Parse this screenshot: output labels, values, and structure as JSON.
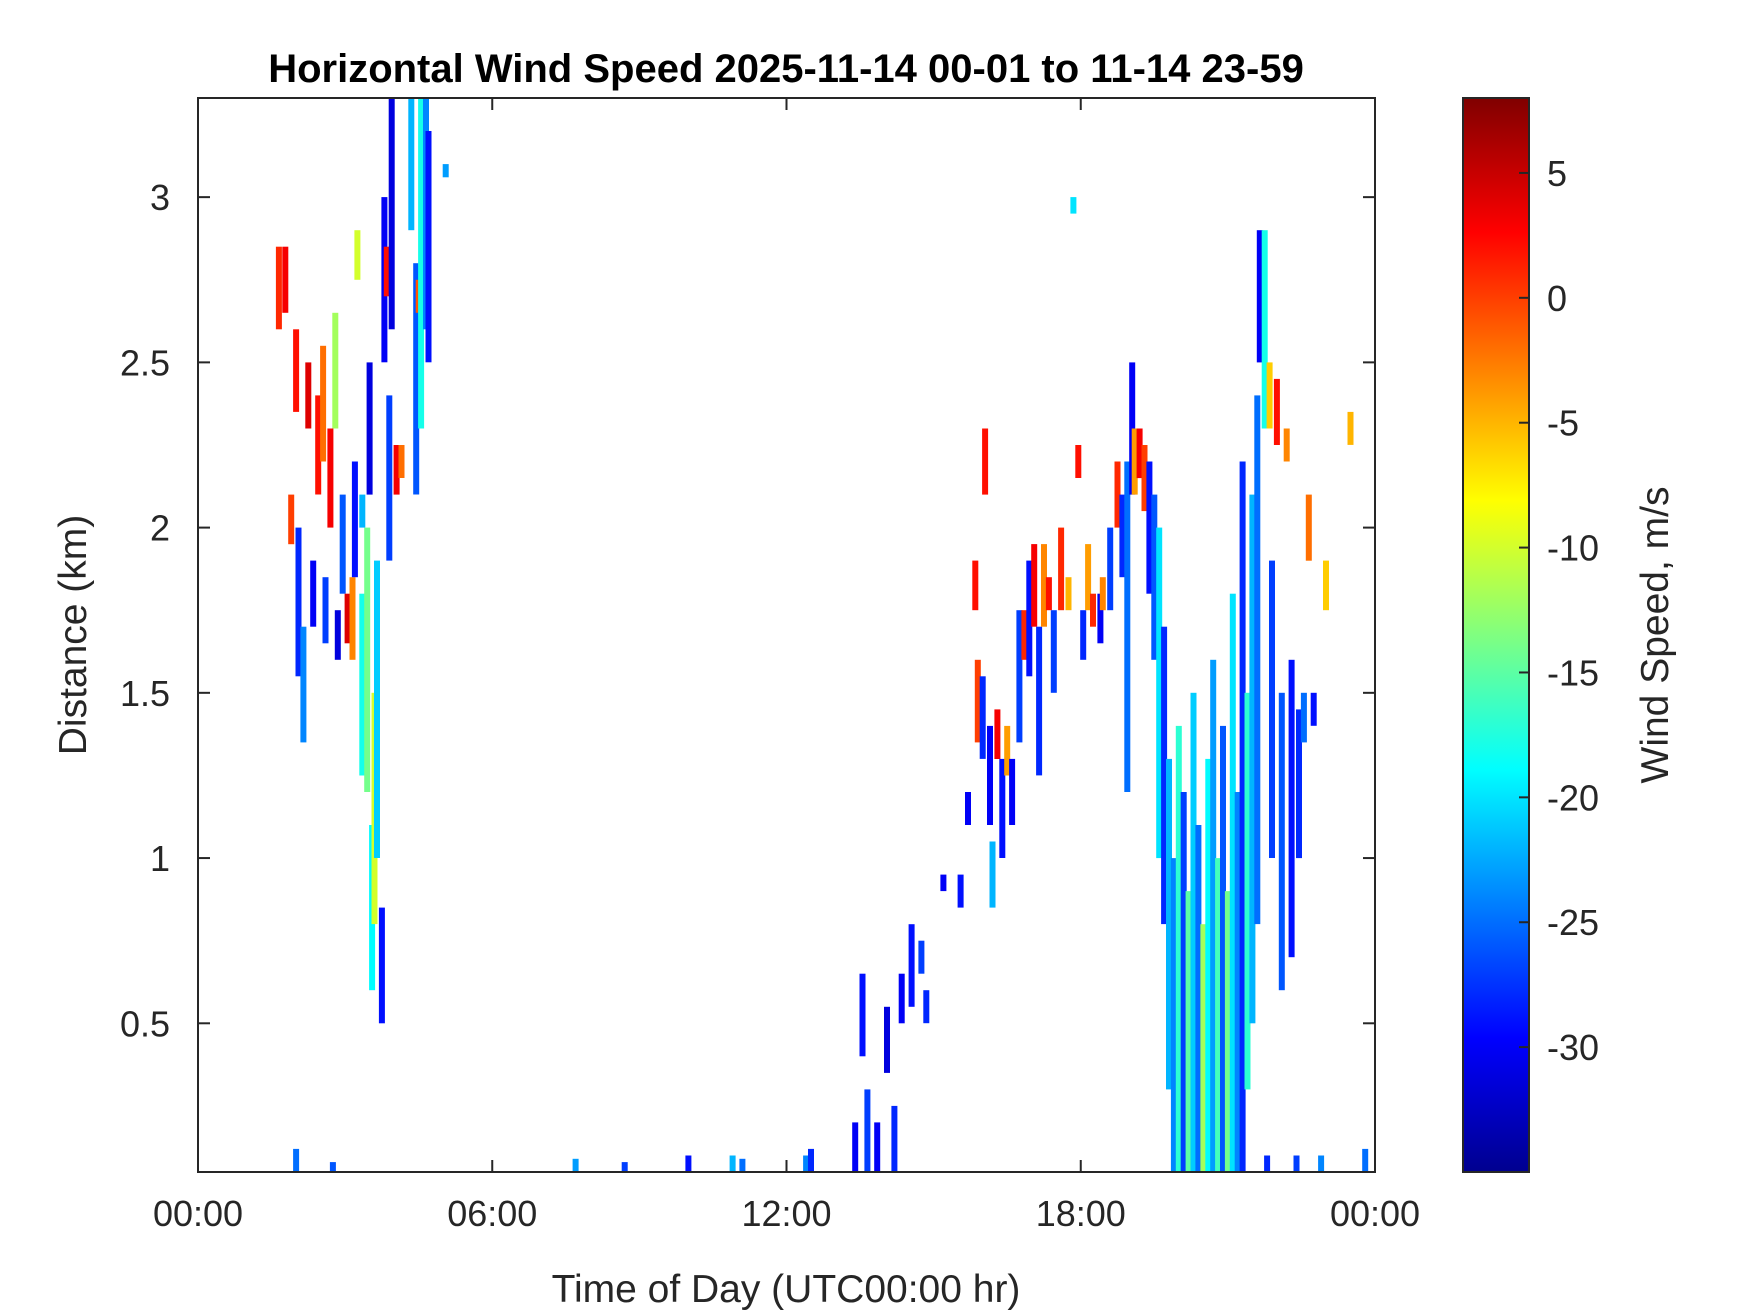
{
  "chart_data": {
    "type": "heatmap",
    "title": "Horizontal Wind Speed 2025-11-14 00-01 to 11-14 23-59",
    "xlabel": "Time of Day (UTC00:00 hr)",
    "ylabel": "Distance (km)",
    "colorbar_label": "Wind Speed, m/s",
    "colormap": "jet",
    "x_unit": "hours",
    "xlim": [
      0,
      24
    ],
    "ylim": [
      0.05,
      3.3
    ],
    "clim": [
      -35,
      8
    ],
    "x_ticks": [
      {
        "value": 0,
        "label": "00:00"
      },
      {
        "value": 6,
        "label": "06:00"
      },
      {
        "value": 12,
        "label": "12:00"
      },
      {
        "value": 18,
        "label": "18:00"
      },
      {
        "value": 24,
        "label": "00:00"
      }
    ],
    "y_ticks": [
      {
        "value": 0.5,
        "label": "0.5"
      },
      {
        "value": 1,
        "label": "1"
      },
      {
        "value": 1.5,
        "label": "1.5"
      },
      {
        "value": 2,
        "label": "2"
      },
      {
        "value": 2.5,
        "label": "2.5"
      },
      {
        "value": 3,
        "label": "3"
      }
    ],
    "colorbar_ticks": [
      {
        "value": 5,
        "label": "5"
      },
      {
        "value": 0,
        "label": "0"
      },
      {
        "value": -5,
        "label": "-5"
      },
      {
        "value": -10,
        "label": "-10"
      },
      {
        "value": -15,
        "label": "-15"
      },
      {
        "value": -20,
        "label": "-20"
      },
      {
        "value": -25,
        "label": "-25"
      },
      {
        "value": -30,
        "label": "-30"
      }
    ],
    "segments": [
      {
        "t": 1.65,
        "h0": 2.6,
        "h1": 2.85,
        "v": 1
      },
      {
        "t": 1.78,
        "h0": 2.65,
        "h1": 2.85,
        "v": 3
      },
      {
        "t": 1.9,
        "h0": 1.95,
        "h1": 2.1,
        "v": 0
      },
      {
        "t": 2.0,
        "h0": 2.35,
        "h1": 2.6,
        "v": 2
      },
      {
        "t": 2.05,
        "h0": 1.55,
        "h1": 2.0,
        "v": -28
      },
      {
        "t": 2.15,
        "h0": 1.35,
        "h1": 1.7,
        "v": -24
      },
      {
        "t": 2.25,
        "h0": 2.3,
        "h1": 2.5,
        "v": 4
      },
      {
        "t": 2.35,
        "h0": 1.7,
        "h1": 1.9,
        "v": -30
      },
      {
        "t": 2.45,
        "h0": 2.1,
        "h1": 2.4,
        "v": 2
      },
      {
        "t": 2.55,
        "h0": 2.2,
        "h1": 2.55,
        "v": -2
      },
      {
        "t": 2.6,
        "h0": 1.65,
        "h1": 1.85,
        "v": -27
      },
      {
        "t": 2.7,
        "h0": 2.0,
        "h1": 2.3,
        "v": 3
      },
      {
        "t": 2.8,
        "h0": 2.3,
        "h1": 2.65,
        "v": -12
      },
      {
        "t": 2.85,
        "h0": 1.6,
        "h1": 1.75,
        "v": -31
      },
      {
        "t": 2.95,
        "h0": 1.8,
        "h1": 2.1,
        "v": -26
      },
      {
        "t": 3.05,
        "h0": 1.65,
        "h1": 1.8,
        "v": 4
      },
      {
        "t": 3.15,
        "h0": 1.6,
        "h1": 1.85,
        "v": -3
      },
      {
        "t": 3.2,
        "h0": 1.85,
        "h1": 2.2,
        "v": -29
      },
      {
        "t": 3.25,
        "h0": 2.75,
        "h1": 2.9,
        "v": -10
      },
      {
        "t": 3.35,
        "h0": 2.0,
        "h1": 2.1,
        "v": -22
      },
      {
        "t": 3.35,
        "h0": 1.25,
        "h1": 1.8,
        "v": -18
      },
      {
        "t": 3.45,
        "h0": 1.2,
        "h1": 2.0,
        "v": -14
      },
      {
        "t": 3.5,
        "h0": 2.1,
        "h1": 2.5,
        "v": -31
      },
      {
        "t": 3.55,
        "h0": 0.6,
        "h1": 1.1,
        "v": -19
      },
      {
        "t": 3.6,
        "h0": 0.8,
        "h1": 1.5,
        "v": -10
      },
      {
        "t": 3.65,
        "h0": 1.0,
        "h1": 1.9,
        "v": -21
      },
      {
        "t": 3.75,
        "h0": 0.5,
        "h1": 0.85,
        "v": -29
      },
      {
        "t": 3.8,
        "h0": 2.5,
        "h1": 3.0,
        "v": -30
      },
      {
        "t": 3.85,
        "h0": 2.7,
        "h1": 2.85,
        "v": 2
      },
      {
        "t": 3.9,
        "h0": 1.9,
        "h1": 2.4,
        "v": -27
      },
      {
        "t": 3.95,
        "h0": 2.6,
        "h1": 3.3,
        "v": -31
      },
      {
        "t": 4.05,
        "h0": 2.1,
        "h1": 2.25,
        "v": 3
      },
      {
        "t": 4.15,
        "h0": 2.15,
        "h1": 2.25,
        "v": -2
      },
      {
        "t": 4.35,
        "h0": 2.9,
        "h1": 3.3,
        "v": -22
      },
      {
        "t": 4.45,
        "h0": 2.1,
        "h1": 2.8,
        "v": -26
      },
      {
        "t": 4.5,
        "h0": 2.65,
        "h1": 2.75,
        "v": -1
      },
      {
        "t": 4.55,
        "h0": 2.3,
        "h1": 3.3,
        "v": -18
      },
      {
        "t": 4.65,
        "h0": 2.6,
        "h1": 3.3,
        "v": -24
      },
      {
        "t": 4.7,
        "h0": 2.5,
        "h1": 3.2,
        "v": -29
      },
      {
        "t": 5.05,
        "h0": 3.06,
        "h1": 3.1,
        "v": -23
      },
      {
        "t": 2.0,
        "h0": 0.05,
        "h1": 0.12,
        "v": -25
      },
      {
        "t": 2.75,
        "h0": 0.05,
        "h1": 0.08,
        "v": -26
      },
      {
        "t": 7.7,
        "h0": 0.05,
        "h1": 0.09,
        "v": -23
      },
      {
        "t": 8.7,
        "h0": 0.05,
        "h1": 0.08,
        "v": -27
      },
      {
        "t": 10.0,
        "h0": 0.05,
        "h1": 0.1,
        "v": -29
      },
      {
        "t": 10.9,
        "h0": 0.05,
        "h1": 0.1,
        "v": -22
      },
      {
        "t": 11.1,
        "h0": 0.05,
        "h1": 0.09,
        "v": -25
      },
      {
        "t": 12.4,
        "h0": 0.05,
        "h1": 0.1,
        "v": -24
      },
      {
        "t": 12.5,
        "h0": 0.05,
        "h1": 0.12,
        "v": -28
      },
      {
        "t": 13.4,
        "h0": 0.05,
        "h1": 0.2,
        "v": -30
      },
      {
        "t": 13.55,
        "h0": 0.4,
        "h1": 0.65,
        "v": -29
      },
      {
        "t": 13.65,
        "h0": 0.05,
        "h1": 0.3,
        "v": -27
      },
      {
        "t": 13.85,
        "h0": 0.05,
        "h1": 0.2,
        "v": -30
      },
      {
        "t": 14.05,
        "h0": 0.35,
        "h1": 0.55,
        "v": -31
      },
      {
        "t": 14.2,
        "h0": 0.05,
        "h1": 0.25,
        "v": -28
      },
      {
        "t": 14.35,
        "h0": 0.5,
        "h1": 0.65,
        "v": -30
      },
      {
        "t": 14.55,
        "h0": 0.55,
        "h1": 0.8,
        "v": -29
      },
      {
        "t": 14.75,
        "h0": 0.65,
        "h1": 0.75,
        "v": -27
      },
      {
        "t": 14.85,
        "h0": 0.5,
        "h1": 0.6,
        "v": -28
      },
      {
        "t": 15.2,
        "h0": 0.9,
        "h1": 0.95,
        "v": -30
      },
      {
        "t": 15.55,
        "h0": 0.85,
        "h1": 0.95,
        "v": -29
      },
      {
        "t": 15.7,
        "h0": 1.1,
        "h1": 1.2,
        "v": -30
      },
      {
        "t": 15.85,
        "h0": 1.75,
        "h1": 1.9,
        "v": 2
      },
      {
        "t": 15.9,
        "h0": 1.35,
        "h1": 1.6,
        "v": 0
      },
      {
        "t": 16.0,
        "h0": 1.3,
        "h1": 1.55,
        "v": -28
      },
      {
        "t": 16.05,
        "h0": 2.1,
        "h1": 2.3,
        "v": 2
      },
      {
        "t": 16.15,
        "h0": 1.1,
        "h1": 1.4,
        "v": -30
      },
      {
        "t": 16.2,
        "h0": 0.85,
        "h1": 1.05,
        "v": -22
      },
      {
        "t": 16.3,
        "h0": 1.3,
        "h1": 1.45,
        "v": 3
      },
      {
        "t": 16.4,
        "h0": 1.0,
        "h1": 1.3,
        "v": -29
      },
      {
        "t": 16.5,
        "h0": 1.25,
        "h1": 1.4,
        "v": -4
      },
      {
        "t": 16.6,
        "h0": 1.1,
        "h1": 1.3,
        "v": -30
      },
      {
        "t": 16.75,
        "h0": 1.35,
        "h1": 1.75,
        "v": -27
      },
      {
        "t": 16.85,
        "h0": 1.6,
        "h1": 1.75,
        "v": 1
      },
      {
        "t": 16.95,
        "h0": 1.55,
        "h1": 1.9,
        "v": -29
      },
      {
        "t": 17.05,
        "h0": 1.7,
        "h1": 1.95,
        "v": 3
      },
      {
        "t": 17.15,
        "h0": 1.25,
        "h1": 1.7,
        "v": -28
      },
      {
        "t": 17.25,
        "h0": 1.7,
        "h1": 1.95,
        "v": -3
      },
      {
        "t": 17.35,
        "h0": 1.75,
        "h1": 1.85,
        "v": 2
      },
      {
        "t": 17.45,
        "h0": 1.5,
        "h1": 1.75,
        "v": -27
      },
      {
        "t": 17.6,
        "h0": 1.75,
        "h1": 2.0,
        "v": 1
      },
      {
        "t": 17.75,
        "h0": 1.75,
        "h1": 1.85,
        "v": -5
      },
      {
        "t": 17.85,
        "h0": 2.95,
        "h1": 3.0,
        "v": -20
      },
      {
        "t": 17.95,
        "h0": 2.15,
        "h1": 2.25,
        "v": 2
      },
      {
        "t": 18.05,
        "h0": 1.6,
        "h1": 1.75,
        "v": -28
      },
      {
        "t": 18.15,
        "h0": 1.75,
        "h1": 1.95,
        "v": -4
      },
      {
        "t": 18.25,
        "h0": 1.7,
        "h1": 1.8,
        "v": 1
      },
      {
        "t": 18.4,
        "h0": 1.65,
        "h1": 1.8,
        "v": -30
      },
      {
        "t": 18.45,
        "h0": 1.75,
        "h1": 1.85,
        "v": -3
      },
      {
        "t": 18.6,
        "h0": 1.75,
        "h1": 2.0,
        "v": -27
      },
      {
        "t": 18.75,
        "h0": 2.0,
        "h1": 2.2,
        "v": 1
      },
      {
        "t": 18.85,
        "h0": 1.85,
        "h1": 2.1,
        "v": -28
      },
      {
        "t": 18.95,
        "h0": 1.2,
        "h1": 2.2,
        "v": -25
      },
      {
        "t": 19.05,
        "h0": 2.1,
        "h1": 2.5,
        "v": -30
      },
      {
        "t": 19.1,
        "h0": 2.1,
        "h1": 2.3,
        "v": -4
      },
      {
        "t": 19.2,
        "h0": 2.15,
        "h1": 2.3,
        "v": 3
      },
      {
        "t": 19.3,
        "h0": 2.05,
        "h1": 2.25,
        "v": 0
      },
      {
        "t": 19.4,
        "h0": 1.8,
        "h1": 2.2,
        "v": -29
      },
      {
        "t": 19.5,
        "h0": 1.6,
        "h1": 2.1,
        "v": -26
      },
      {
        "t": 19.6,
        "h0": 1.0,
        "h1": 2.0,
        "v": -20
      },
      {
        "t": 19.7,
        "h0": 0.8,
        "h1": 1.7,
        "v": -28
      },
      {
        "t": 19.8,
        "h0": 0.3,
        "h1": 1.3,
        "v": -22
      },
      {
        "t": 19.9,
        "h0": 0.05,
        "h1": 1.0,
        "v": -24
      },
      {
        "t": 20.0,
        "h0": 0.05,
        "h1": 1.4,
        "v": -17
      },
      {
        "t": 20.1,
        "h0": 0.05,
        "h1": 1.2,
        "v": -27
      },
      {
        "t": 20.2,
        "h0": 0.05,
        "h1": 0.9,
        "v": -15
      },
      {
        "t": 20.3,
        "h0": 0.05,
        "h1": 1.5,
        "v": -21
      },
      {
        "t": 20.4,
        "h0": 0.05,
        "h1": 1.1,
        "v": -25
      },
      {
        "t": 20.5,
        "h0": 0.05,
        "h1": 0.8,
        "v": -12
      },
      {
        "t": 20.6,
        "h0": 0.05,
        "h1": 1.3,
        "v": -19
      },
      {
        "t": 20.7,
        "h0": 0.05,
        "h1": 1.6,
        "v": -23
      },
      {
        "t": 20.8,
        "h0": 0.05,
        "h1": 1.0,
        "v": -16
      },
      {
        "t": 20.9,
        "h0": 0.05,
        "h1": 1.4,
        "v": -26
      },
      {
        "t": 21.0,
        "h0": 0.05,
        "h1": 0.9,
        "v": -14
      },
      {
        "t": 21.1,
        "h0": 0.05,
        "h1": 1.8,
        "v": -20
      },
      {
        "t": 21.2,
        "h0": 0.05,
        "h1": 1.2,
        "v": -24
      },
      {
        "t": 21.3,
        "h0": 0.05,
        "h1": 2.2,
        "v": -28
      },
      {
        "t": 21.4,
        "h0": 0.3,
        "h1": 1.5,
        "v": -17
      },
      {
        "t": 21.5,
        "h0": 0.5,
        "h1": 2.1,
        "v": -22
      },
      {
        "t": 21.6,
        "h0": 0.8,
        "h1": 2.4,
        "v": -25
      },
      {
        "t": 21.65,
        "h0": 2.5,
        "h1": 2.9,
        "v": -30
      },
      {
        "t": 21.75,
        "h0": 2.3,
        "h1": 2.9,
        "v": -18
      },
      {
        "t": 21.85,
        "h0": 2.3,
        "h1": 2.5,
        "v": -6
      },
      {
        "t": 21.9,
        "h0": 1.0,
        "h1": 1.9,
        "v": -27
      },
      {
        "t": 22.0,
        "h0": 2.25,
        "h1": 2.45,
        "v": 2
      },
      {
        "t": 22.1,
        "h0": 0.6,
        "h1": 1.5,
        "v": -26
      },
      {
        "t": 22.2,
        "h0": 2.2,
        "h1": 2.3,
        "v": -3
      },
      {
        "t": 22.3,
        "h0": 0.7,
        "h1": 1.6,
        "v": -29
      },
      {
        "t": 22.45,
        "h0": 1.0,
        "h1": 1.45,
        "v": -28
      },
      {
        "t": 22.55,
        "h0": 1.35,
        "h1": 1.5,
        "v": -25
      },
      {
        "t": 22.65,
        "h0": 1.9,
        "h1": 2.1,
        "v": -2
      },
      {
        "t": 22.75,
        "h0": 1.4,
        "h1": 1.5,
        "v": -29
      },
      {
        "t": 23.0,
        "h0": 1.75,
        "h1": 1.9,
        "v": -6
      },
      {
        "t": 23.5,
        "h0": 2.25,
        "h1": 2.35,
        "v": -5
      },
      {
        "t": 21.8,
        "h0": 0.05,
        "h1": 0.1,
        "v": -28
      },
      {
        "t": 22.4,
        "h0": 0.05,
        "h1": 0.1,
        "v": -27
      },
      {
        "t": 22.9,
        "h0": 0.05,
        "h1": 0.1,
        "v": -24
      },
      {
        "t": 23.8,
        "h0": 0.05,
        "h1": 0.12,
        "v": -25
      }
    ]
  }
}
